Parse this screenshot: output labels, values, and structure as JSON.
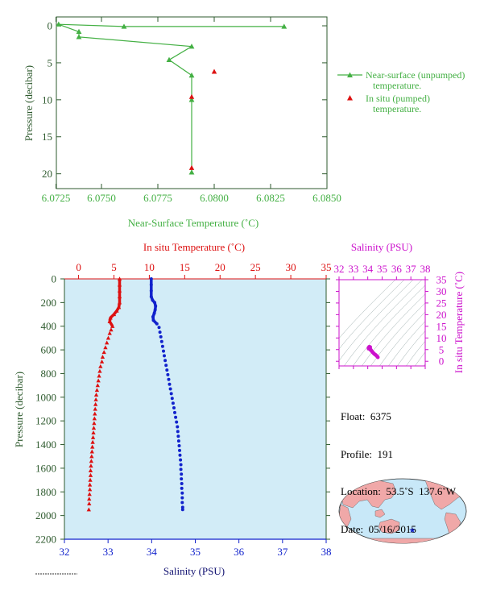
{
  "colors": {
    "green": "#44b044",
    "dark_green": "#2e5a2e",
    "red": "#dd1111",
    "blue": "#1122cc",
    "magenta": "#cc11cc",
    "navy": "#101070",
    "panel_bg": "#d2ecf7"
  },
  "chart_data": [
    {
      "type": "line",
      "xlabel": "Near-Surface Temperature (˚C)",
      "ylabel": "Pressure (decibar)",
      "xlim": [
        6.073,
        6.085
      ],
      "ylim": [
        22,
        -1.2
      ],
      "y_inverted": true,
      "xticks": [
        "6.0725",
        "6.0750",
        "6.0775",
        "6.0800",
        "6.0825",
        "6.0850"
      ],
      "xtick_values": [
        6.0725,
        6.075,
        6.0775,
        6.08,
        6.0825,
        6.085
      ],
      "yticks": [
        "0",
        "5",
        "10",
        "15",
        "20"
      ],
      "ytick_values": [
        0,
        5,
        10,
        15,
        20
      ],
      "series": [
        {
          "name": "Near-surface (unpumped) temperature.",
          "marker": "triangle",
          "color": "#44b044",
          "points": [
            [
              6.0831,
              0.1
            ],
            [
              6.076,
              0.1
            ],
            [
              6.0731,
              -0.2
            ],
            [
              6.074,
              0.8
            ],
            [
              6.074,
              1.5
            ],
            [
              6.079,
              2.8
            ],
            [
              6.078,
              4.6
            ],
            [
              6.079,
              6.7
            ],
            [
              6.079,
              10.0
            ],
            [
              6.079,
              19.8
            ]
          ]
        },
        {
          "name": "In situ (pumped) temperature.",
          "marker": "triangle",
          "color": "#dd1111",
          "points": [
            [
              6.08,
              6.2
            ],
            [
              6.079,
              9.6
            ],
            [
              6.079,
              19.2
            ]
          ]
        }
      ],
      "legend": [
        {
          "line1": "Near-surface (unpumped)",
          "line2": "temperature."
        },
        {
          "line1": "In situ (pumped)",
          "line2": "temperature."
        }
      ],
      "legend_placement": "right"
    },
    {
      "type": "line",
      "ylabel": "Pressure (decibar)",
      "top_xlabel": "In situ Temperature (˚C)",
      "bottom_xlabel": "Salinity (PSU)",
      "temperature_lim": [
        -2,
        35
      ],
      "salinity_lim": [
        32,
        38
      ],
      "pressure_lim": [
        2200,
        0
      ],
      "temperature_ticks": [
        "0",
        "5",
        "10",
        "15",
        "20",
        "25",
        "30",
        "35"
      ],
      "temperature_tick_values": [
        0,
        5,
        10,
        15,
        20,
        25,
        30,
        35
      ],
      "salinity_ticks": [
        "32",
        "33",
        "34",
        "35",
        "36",
        "37",
        "38"
      ],
      "salinity_tick_values": [
        32,
        33,
        34,
        35,
        36,
        37,
        38
      ],
      "pressure_ticks": [
        "0",
        "200",
        "400",
        "600",
        "800",
        "1000",
        "1200",
        "1400",
        "1600",
        "1800",
        "2000",
        "2200"
      ],
      "pressure_tick_values": [
        0,
        200,
        400,
        600,
        800,
        1000,
        1200,
        1400,
        1600,
        1800,
        2000,
        2200
      ],
      "series": [
        {
          "name": "In situ Temperature",
          "axis": "temperature",
          "color": "#dd1111",
          "points": [
            [
              5.8,
              0
            ],
            [
              5.8,
              50
            ],
            [
              5.8,
              100
            ],
            [
              5.8,
              150
            ],
            [
              5.8,
              200
            ],
            [
              5.7,
              240
            ],
            [
              5.4,
              270
            ],
            [
              5.0,
              300
            ],
            [
              4.5,
              330
            ],
            [
              4.4,
              360
            ],
            [
              4.8,
              400
            ],
            [
              4.6,
              430
            ],
            [
              4.4,
              460
            ],
            [
              4.2,
              500
            ],
            [
              4.0,
              540
            ],
            [
              3.8,
              580
            ],
            [
              3.6,
              620
            ],
            [
              3.4,
              660
            ],
            [
              3.3,
              700
            ],
            [
              3.1,
              740
            ],
            [
              3.0,
              780
            ],
            [
              2.9,
              820
            ],
            [
              2.8,
              860
            ],
            [
              2.7,
              900
            ],
            [
              2.6,
              940
            ],
            [
              2.5,
              980
            ],
            [
              2.45,
              1020
            ],
            [
              2.4,
              1060
            ],
            [
              2.35,
              1100
            ],
            [
              2.3,
              1140
            ],
            [
              2.25,
              1180
            ],
            [
              2.2,
              1220
            ],
            [
              2.15,
              1260
            ],
            [
              2.1,
              1300
            ],
            [
              2.05,
              1340
            ],
            [
              2.0,
              1380
            ],
            [
              1.95,
              1420
            ],
            [
              1.9,
              1460
            ],
            [
              1.85,
              1500
            ],
            [
              1.8,
              1540
            ],
            [
              1.75,
              1580
            ],
            [
              1.7,
              1620
            ],
            [
              1.7,
              1660
            ],
            [
              1.65,
              1700
            ],
            [
              1.6,
              1740
            ],
            [
              1.6,
              1780
            ],
            [
              1.55,
              1820
            ],
            [
              1.5,
              1860
            ],
            [
              1.5,
              1900
            ],
            [
              1.45,
              1950
            ]
          ]
        },
        {
          "name": "Salinity",
          "axis": "salinity",
          "color": "#1122cc",
          "points": [
            [
              33.99,
              0
            ],
            [
              33.99,
              50
            ],
            [
              33.99,
              100
            ],
            [
              33.99,
              150
            ],
            [
              34.02,
              180
            ],
            [
              34.07,
              200
            ],
            [
              34.09,
              230
            ],
            [
              34.08,
              260
            ],
            [
              34.06,
              290
            ],
            [
              34.03,
              320
            ],
            [
              34.04,
              350
            ],
            [
              34.12,
              380
            ],
            [
              34.17,
              410
            ],
            [
              34.19,
              450
            ],
            [
              34.21,
              490
            ],
            [
              34.23,
              530
            ],
            [
              34.25,
              570
            ],
            [
              34.27,
              610
            ],
            [
              34.29,
              650
            ],
            [
              34.31,
              690
            ],
            [
              34.33,
              730
            ],
            [
              34.35,
              770
            ],
            [
              34.37,
              810
            ],
            [
              34.39,
              850
            ],
            [
              34.41,
              890
            ],
            [
              34.43,
              930
            ],
            [
              34.45,
              970
            ],
            [
              34.47,
              1010
            ],
            [
              34.49,
              1050
            ],
            [
              34.51,
              1090
            ],
            [
              34.53,
              1130
            ],
            [
              34.55,
              1170
            ],
            [
              34.57,
              1210
            ],
            [
              34.59,
              1250
            ],
            [
              34.6,
              1290
            ],
            [
              34.61,
              1330
            ],
            [
              34.62,
              1370
            ],
            [
              34.63,
              1410
            ],
            [
              34.64,
              1450
            ],
            [
              34.65,
              1490
            ],
            [
              34.66,
              1530
            ],
            [
              34.67,
              1570
            ],
            [
              34.67,
              1610
            ],
            [
              34.68,
              1650
            ],
            [
              34.68,
              1690
            ],
            [
              34.69,
              1730
            ],
            [
              34.69,
              1770
            ],
            [
              34.7,
              1810
            ],
            [
              34.7,
              1850
            ],
            [
              34.7,
              1890
            ],
            [
              34.71,
              1930
            ],
            [
              34.71,
              1950
            ]
          ]
        }
      ]
    },
    {
      "type": "scatter",
      "title": "Salinity (PSU)",
      "ylabel": "In situ Temperature (˚C)",
      "xlim": [
        32,
        38
      ],
      "ylim": [
        -2,
        35
      ],
      "xticks": [
        "32",
        "33",
        "34",
        "35",
        "36",
        "37",
        "38"
      ],
      "xtick_values": [
        32,
        33,
        34,
        35,
        36,
        37,
        38
      ],
      "yticks": [
        "0",
        "5",
        "10",
        "15",
        "20",
        "25",
        "30",
        "35"
      ],
      "ytick_values": [
        0,
        5,
        10,
        15,
        20,
        25,
        30,
        35
      ],
      "background_contours": "density isopycnals",
      "points": [
        [
          34.1,
          6.2
        ],
        [
          34.12,
          5.9
        ],
        [
          34.16,
          5.5
        ],
        [
          34.2,
          5.0
        ],
        [
          34.25,
          4.6
        ],
        [
          34.3,
          4.2
        ],
        [
          34.35,
          3.8
        ],
        [
          34.4,
          3.5
        ],
        [
          34.45,
          3.2
        ],
        [
          34.5,
          2.9
        ],
        [
          34.55,
          2.7
        ],
        [
          34.6,
          2.4
        ],
        [
          34.65,
          2.1
        ],
        [
          34.7,
          1.7
        ],
        [
          34.06,
          5.4
        ],
        [
          34.05,
          5.8
        ],
        [
          34.17,
          6.1
        ],
        [
          34.2,
          4.8
        ]
      ],
      "color": "#cc11cc"
    }
  ],
  "info": {
    "float_line": "Float:  6375",
    "profile_line": "Profile:  191",
    "location_line": "Location:  53.5˚S  137.6˚W",
    "date_line": "Date:  05/16/2015"
  },
  "map": {
    "marker_color": "#1122cc",
    "ocean_color": "#c8e8f8",
    "land_color": "#f0a8a8"
  }
}
